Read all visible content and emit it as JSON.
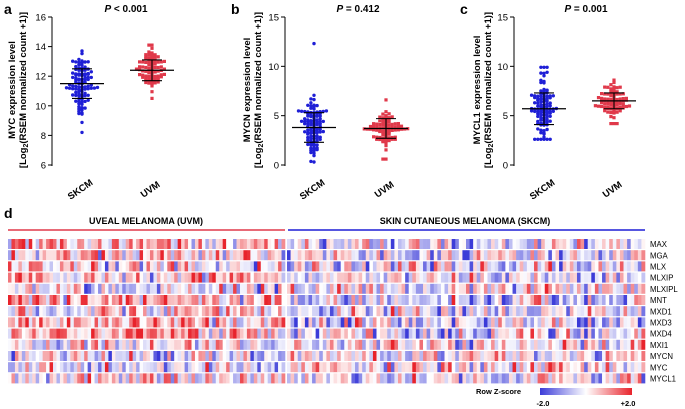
{
  "colors": {
    "skcm": "#1f1fd6",
    "uvm": "#e0394a",
    "hm_low": "#3b3bd8",
    "hm_mid": "#ffffff",
    "hm_high": "#e8232b"
  },
  "chart_data": [
    {
      "panel": "a",
      "type": "scatter",
      "title": "P < 0.001",
      "title_prefix": "P",
      "title_rest": " < 0.001",
      "ylabel": "MYC expression level",
      "ylabel2": "[Log",
      "ylabel2_sub": "2",
      "ylabel2_rest": "(RSEM normalized count +1)]",
      "ylim": [
        6,
        16
      ],
      "yticks": [
        "6",
        "8",
        "10",
        "12",
        "14",
        "16"
      ],
      "categories": [
        "SKCM",
        "UVM"
      ],
      "series": [
        {
          "name": "SKCM",
          "mean": 11.5,
          "sd": 1.0,
          "min": 8.2,
          "max": 13.7,
          "n": 100
        },
        {
          "name": "UVM",
          "mean": 12.4,
          "sd": 0.7,
          "min": 10.5,
          "max": 14.1,
          "n": 80
        }
      ]
    },
    {
      "panel": "b",
      "type": "scatter",
      "title": "P = 0.412",
      "title_prefix": "P",
      "title_rest": " = 0.412",
      "ylabel": "MYCN expression level",
      "ylabel2": "[Log",
      "ylabel2_sub": "2",
      "ylabel2_rest": "(RSEM normalized count +1)]",
      "ylim": [
        0,
        15
      ],
      "yticks": [
        "0",
        "5",
        "10",
        "15"
      ],
      "categories": [
        "SKCM",
        "UVM"
      ],
      "series": [
        {
          "name": "SKCM",
          "mean": 3.8,
          "sd": 1.5,
          "min": 0.3,
          "max": 12.3,
          "n": 100
        },
        {
          "name": "UVM",
          "mean": 3.7,
          "sd": 1.0,
          "min": 0.6,
          "max": 6.6,
          "n": 80
        }
      ]
    },
    {
      "panel": "c",
      "type": "scatter",
      "title": "P = 0.001",
      "title_prefix": "P",
      "title_rest": " = 0.001",
      "ylabel": "MYCL1 expression level",
      "ylabel2": "[Log",
      "ylabel2_sub": "2",
      "ylabel2_rest": "(RSEM normalized count +1)]",
      "ylim": [
        0,
        15
      ],
      "yticks": [
        "0",
        "5",
        "10",
        "15"
      ],
      "categories": [
        "SKCM",
        "UVM"
      ],
      "series": [
        {
          "name": "SKCM",
          "mean": 5.7,
          "sd": 1.6,
          "min": 2.6,
          "max": 9.9,
          "n": 100
        },
        {
          "name": "UVM",
          "mean": 6.5,
          "sd": 0.8,
          "min": 4.2,
          "max": 8.6,
          "n": 80
        }
      ]
    },
    {
      "panel": "d",
      "type": "heatmap",
      "groups": [
        {
          "label": "UVEAL MELANOMA (UVM)",
          "columns": 80
        },
        {
          "label": "SKIN CUTANEOUS MELANOMA (SKCM)",
          "columns": 100
        }
      ],
      "rows": [
        "MAX",
        "MGA",
        "MLX",
        "MLXIP",
        "MLXIPL",
        "MNT",
        "MXD1",
        "MXD3",
        "MXD4",
        "MXI1",
        "MYCN",
        "MYC",
        "MYCL1"
      ],
      "row_bias": {
        "uvm": [
          0.6,
          0.3,
          0.2,
          0.5,
          -0.2,
          0.8,
          0.3,
          0.6,
          0.8,
          0.1,
          -0.1,
          -0.3,
          0.2
        ],
        "skcm": [
          -0.3,
          -0.1,
          -0.1,
          -0.2,
          0.0,
          -0.4,
          -0.1,
          -0.3,
          -0.4,
          0.0,
          0.0,
          0.1,
          -0.1
        ]
      },
      "legend": {
        "title": "Row Z-score",
        "min_label": "-2.0",
        "max_label": "+2.0"
      }
    }
  ]
}
